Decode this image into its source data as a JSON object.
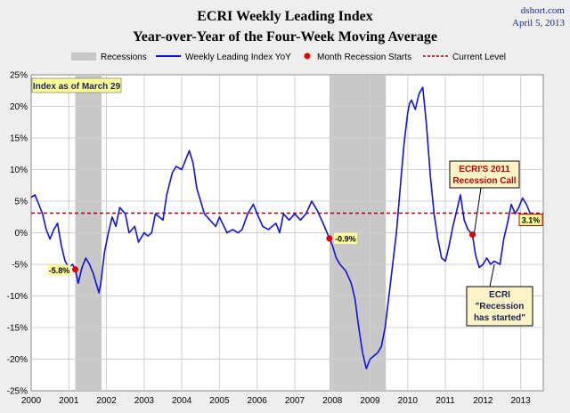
{
  "chart_data": {
    "type": "line",
    "title_lines": [
      "ECRI Weekly Leading Index",
      "Year-over-Year of the Four-Week Moving Average"
    ],
    "source": "dshort.com",
    "date": "April 5, 2013",
    "legend": {
      "placement": "top",
      "recessions": "Recessions",
      "series": "Weekly Leading Index YoY",
      "recession_starts": "Month Recession Starts",
      "current_level": "Current Level"
    },
    "x_tick_labels": [
      "2000",
      "2001",
      "2002",
      "2003",
      "2004",
      "2005",
      "2006",
      "2007",
      "2008",
      "2009",
      "2010",
      "2011",
      "2012",
      "2013"
    ],
    "xlim": [
      2000,
      2013.6
    ],
    "y_tick_labels": [
      "25%",
      "20%",
      "15%",
      "10%",
      "5%",
      "0%",
      "-5%",
      "-10%",
      "-15%",
      "-20%",
      "-25%"
    ],
    "ylim": [
      -25,
      25
    ],
    "grid": true,
    "recession_periods": [
      [
        2001.17,
        2001.87
      ],
      [
        2007.92,
        2009.42
      ]
    ],
    "recession_start_points": [
      {
        "x": 2001.17,
        "y": -5.8,
        "label": "-5.8%"
      },
      {
        "x": 2007.92,
        "y": -0.9,
        "label": "-0.9%"
      }
    ],
    "ecri_call_point": {
      "x": 2011.72,
      "y": -0.3
    },
    "current_level": {
      "value": 3.1,
      "label": "3.1%"
    },
    "note": "Index as of March 29",
    "callouts": {
      "call_2011": [
        "ECRI'S 2011",
        "Recession Call"
      ],
      "has_started": [
        "ECRI",
        "\"Recession",
        "has started\""
      ]
    },
    "colors": {
      "series": "#1010e0",
      "recession_band": "#c8c8c8",
      "marker": "#e00000",
      "current_line": "#b00000",
      "label_bg": "#ffff99",
      "callout_bg": "#fff4c8"
    },
    "series": {
      "name": "Weekly Leading Index YoY",
      "x": [
        2000.0,
        2000.1,
        2000.2,
        2000.3,
        2000.4,
        2000.5,
        2000.6,
        2000.7,
        2000.8,
        2000.9,
        2001.0,
        2001.1,
        2001.17,
        2001.25,
        2001.35,
        2001.45,
        2001.55,
        2001.65,
        2001.75,
        2001.8,
        2001.85,
        2001.95,
        2002.05,
        2002.15,
        2002.25,
        2002.35,
        2002.5,
        2002.6,
        2002.75,
        2002.85,
        2003.0,
        2003.1,
        2003.2,
        2003.3,
        2003.5,
        2003.6,
        2003.75,
        2003.85,
        2004.0,
        2004.1,
        2004.2,
        2004.3,
        2004.4,
        2004.5,
        2004.6,
        2004.75,
        2004.9,
        2005.0,
        2005.2,
        2005.35,
        2005.5,
        2005.6,
        2005.75,
        2005.9,
        2006.0,
        2006.15,
        2006.3,
        2006.5,
        2006.6,
        2006.7,
        2006.85,
        2007.0,
        2007.15,
        2007.3,
        2007.45,
        2007.6,
        2007.75,
        2007.92,
        2008.0,
        2008.1,
        2008.2,
        2008.35,
        2008.5,
        2008.6,
        2008.7,
        2008.8,
        2008.9,
        2009.0,
        2009.1,
        2009.2,
        2009.3,
        2009.4,
        2009.5,
        2009.6,
        2009.7,
        2009.8,
        2009.9,
        2010.0,
        2010.05,
        2010.1,
        2010.2,
        2010.3,
        2010.4,
        2010.5,
        2010.6,
        2010.7,
        2010.8,
        2010.9,
        2011.0,
        2011.1,
        2011.2,
        2011.3,
        2011.4,
        2011.5,
        2011.6,
        2011.72,
        2011.8,
        2011.9,
        2012.0,
        2012.1,
        2012.2,
        2012.3,
        2012.45,
        2012.55,
        2012.65,
        2012.75,
        2012.85,
        2012.95,
        2013.05,
        2013.15,
        2013.25
      ],
      "y": [
        5.6,
        6.0,
        4.5,
        3.0,
        0.5,
        -1.0,
        0.5,
        1.5,
        -2.0,
        -4.5,
        -5.5,
        -5.0,
        -5.8,
        -8.0,
        -5.5,
        -4.0,
        -5.0,
        -6.5,
        -8.5,
        -9.5,
        -8.0,
        -3.0,
        0.0,
        2.5,
        1.0,
        4.0,
        3.0,
        0.0,
        1.0,
        -1.5,
        0.0,
        -0.5,
        0.0,
        3.0,
        2.0,
        6.0,
        9.5,
        10.5,
        10.0,
        11.5,
        13.0,
        11.0,
        7.0,
        5.0,
        3.0,
        2.0,
        1.0,
        2.5,
        0.0,
        0.5,
        0.0,
        0.5,
        3.0,
        4.5,
        3.0,
        1.0,
        0.5,
        1.5,
        0.0,
        3.0,
        2.0,
        3.0,
        2.0,
        3.0,
        5.0,
        3.5,
        1.5,
        -0.9,
        -2.0,
        -4.0,
        -5.0,
        -6.0,
        -8.0,
        -10.5,
        -15.0,
        -19.0,
        -21.5,
        -20.0,
        -19.5,
        -19.0,
        -18.0,
        -15.0,
        -10.0,
        -5.0,
        0.0,
        7.0,
        14.0,
        19.0,
        20.5,
        21.0,
        19.5,
        22.0,
        23.0,
        17.0,
        9.0,
        3.0,
        -1.0,
        -4.0,
        -4.5,
        -2.0,
        1.0,
        3.5,
        6.0,
        2.0,
        0.5,
        -0.3,
        -3.5,
        -5.5,
        -5.0,
        -4.0,
        -5.0,
        -4.5,
        -5.0,
        -1.0,
        1.5,
        4.5,
        3.0,
        4.0,
        5.5,
        4.5,
        3.1
      ]
    }
  }
}
